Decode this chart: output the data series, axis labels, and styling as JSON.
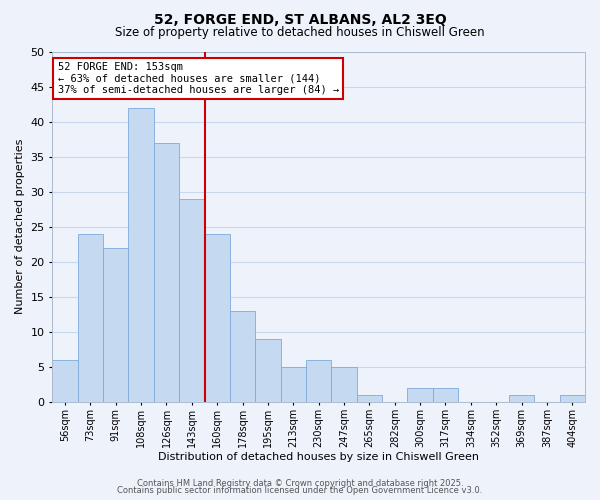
{
  "title": "52, FORGE END, ST ALBANS, AL2 3EQ",
  "subtitle": "Size of property relative to detached houses in Chiswell Green",
  "xlabel": "Distribution of detached houses by size in Chiswell Green",
  "ylabel": "Number of detached properties",
  "bin_labels": [
    "56sqm",
    "73sqm",
    "91sqm",
    "108sqm",
    "126sqm",
    "143sqm",
    "160sqm",
    "178sqm",
    "195sqm",
    "213sqm",
    "230sqm",
    "247sqm",
    "265sqm",
    "282sqm",
    "300sqm",
    "317sqm",
    "334sqm",
    "352sqm",
    "369sqm",
    "387sqm",
    "404sqm"
  ],
  "bar_values": [
    6,
    24,
    22,
    42,
    37,
    29,
    24,
    13,
    9,
    5,
    6,
    5,
    1,
    0,
    2,
    2,
    0,
    0,
    1,
    0,
    1
  ],
  "bar_color": "#c5d9f1",
  "bar_edge_color": "#7faadc",
  "grid_color": "#c8d8ee",
  "background_color": "#eef2fb",
  "vline_x": 5.5,
  "vline_color": "#cc0000",
  "annotation_title": "52 FORGE END: 153sqm",
  "annotation_line1": "← 63% of detached houses are smaller (144)",
  "annotation_line2": "37% of semi-detached houses are larger (84) →",
  "annotation_box_color": "#ffffff",
  "annotation_box_edge": "#cc0000",
  "ylim": [
    0,
    50
  ],
  "yticks": [
    0,
    5,
    10,
    15,
    20,
    25,
    30,
    35,
    40,
    45,
    50
  ],
  "footer1": "Contains HM Land Registry data © Crown copyright and database right 2025.",
  "footer2": "Contains public sector information licensed under the Open Government Licence v3.0."
}
